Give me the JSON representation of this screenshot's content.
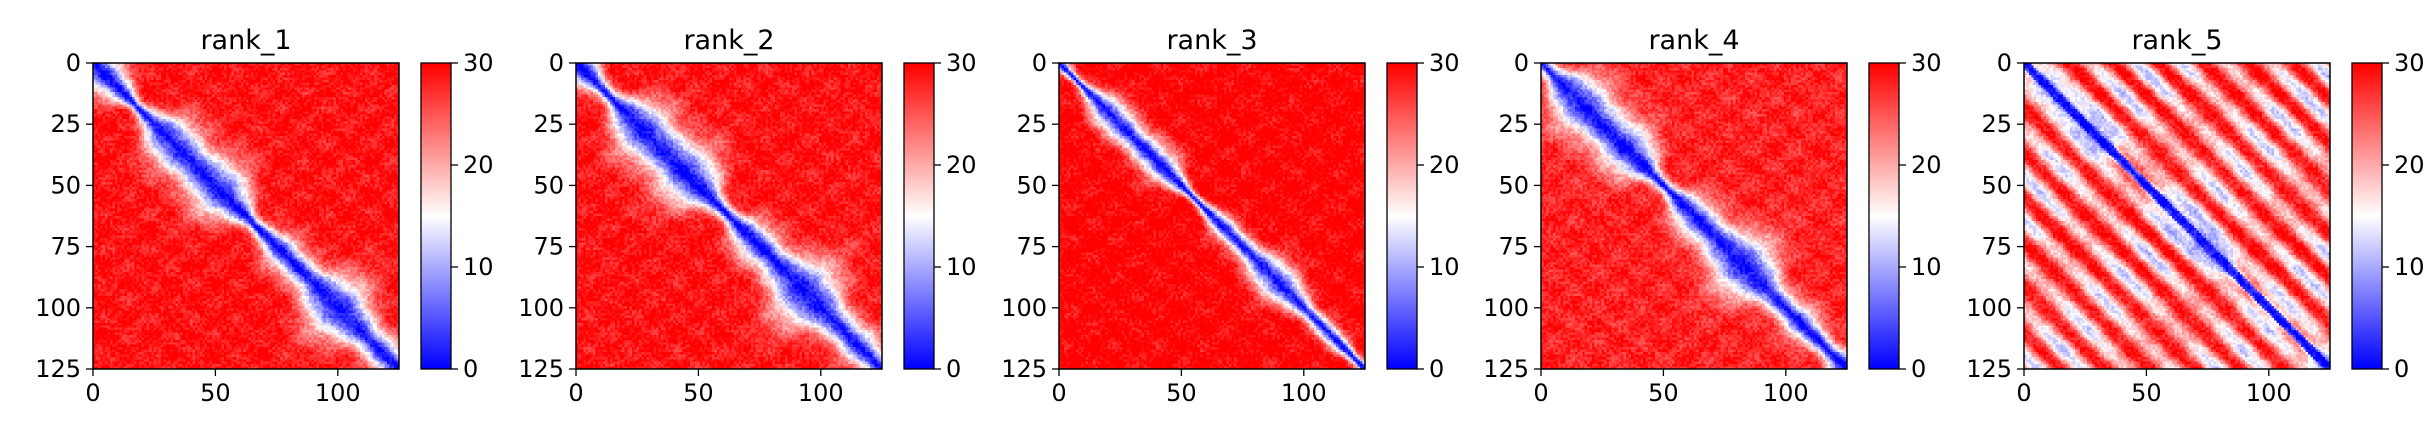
{
  "figure": {
    "background": "#ffffff",
    "colormap": "bwr",
    "colormap_stops": [
      "#0000ff",
      "#ffffff",
      "#ff0000"
    ]
  },
  "chart_data": [
    {
      "type": "heatmap",
      "title": "rank_1",
      "n": 126,
      "x_ticks": [
        "0",
        "50",
        "100"
      ],
      "y_ticks": [
        "0",
        "25",
        "50",
        "75",
        "100",
        "125"
      ],
      "x_tick_values": [
        0,
        50,
        100
      ],
      "y_tick_values": [
        0,
        25,
        50,
        75,
        100,
        125
      ],
      "xlim": [
        0,
        125
      ],
      "ylim": [
        125,
        0
      ],
      "colorbar": {
        "vmin": 0,
        "vmax": 30,
        "ticks": [
          "0",
          "10",
          "20",
          "30"
        ],
        "tick_values": [
          0,
          10,
          20,
          30
        ]
      },
      "description": "distance map, low near diagonal with widening blue band",
      "band_width": 10,
      "far_value": 29,
      "pattern": "smooth"
    },
    {
      "type": "heatmap",
      "title": "rank_2",
      "n": 126,
      "x_ticks": [
        "0",
        "50",
        "100"
      ],
      "y_ticks": [
        "0",
        "25",
        "50",
        "75",
        "100",
        "125"
      ],
      "x_tick_values": [
        0,
        50,
        100
      ],
      "y_tick_values": [
        0,
        25,
        50,
        75,
        100,
        125
      ],
      "xlim": [
        0,
        125
      ],
      "ylim": [
        125,
        0
      ],
      "colorbar": {
        "vmin": 0,
        "vmax": 30,
        "ticks": [
          "0",
          "10",
          "20",
          "30"
        ],
        "tick_values": [
          0,
          10,
          20,
          30
        ]
      },
      "band_width": 11,
      "far_value": 29,
      "pattern": "smooth"
    },
    {
      "type": "heatmap",
      "title": "rank_3",
      "n": 126,
      "x_ticks": [
        "0",
        "50",
        "100"
      ],
      "y_ticks": [
        "0",
        "25",
        "50",
        "75",
        "100",
        "125"
      ],
      "x_tick_values": [
        0,
        50,
        100
      ],
      "y_tick_values": [
        0,
        25,
        50,
        75,
        100,
        125
      ],
      "xlim": [
        0,
        125
      ],
      "ylim": [
        125,
        0
      ],
      "colorbar": {
        "vmin": 0,
        "vmax": 30,
        "ticks": [
          "0",
          "10",
          "20",
          "30"
        ],
        "tick_values": [
          0,
          10,
          20,
          30
        ]
      },
      "band_width": 6,
      "far_value": 30,
      "pattern": "smooth"
    },
    {
      "type": "heatmap",
      "title": "rank_4",
      "n": 126,
      "x_ticks": [
        "0",
        "50",
        "100"
      ],
      "y_ticks": [
        "0",
        "25",
        "50",
        "75",
        "100",
        "125"
      ],
      "x_tick_values": [
        0,
        50,
        100
      ],
      "y_tick_values": [
        0,
        25,
        50,
        75,
        100,
        125
      ],
      "xlim": [
        0,
        125
      ],
      "ylim": [
        125,
        0
      ],
      "colorbar": {
        "vmin": 0,
        "vmax": 30,
        "ticks": [
          "0",
          "10",
          "20",
          "30"
        ],
        "tick_values": [
          0,
          10,
          20,
          30
        ]
      },
      "band_width": 10,
      "far_value": 28,
      "pattern": "smooth"
    },
    {
      "type": "heatmap",
      "title": "rank_5",
      "n": 126,
      "x_ticks": [
        "0",
        "50",
        "100"
      ],
      "y_ticks": [
        "0",
        "25",
        "50",
        "75",
        "100",
        "125"
      ],
      "x_tick_values": [
        0,
        50,
        100
      ],
      "y_tick_values": [
        0,
        25,
        50,
        75,
        100,
        125
      ],
      "xlim": [
        0,
        125
      ],
      "ylim": [
        125,
        0
      ],
      "colorbar": {
        "vmin": 0,
        "vmax": 30,
        "ticks": [
          "0",
          "10",
          "20",
          "30"
        ],
        "tick_values": [
          0,
          10,
          20,
          30
        ]
      },
      "band_width": 4,
      "far_value": 26,
      "pattern": "periodic"
    }
  ]
}
